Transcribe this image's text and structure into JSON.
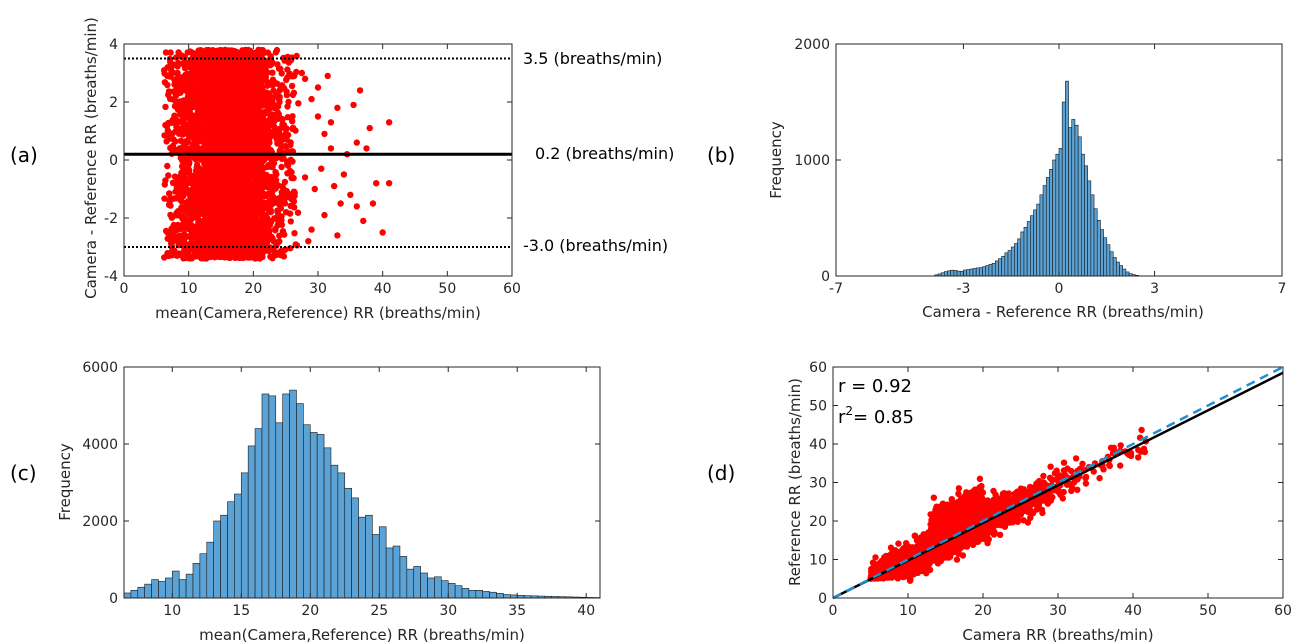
{
  "panel_labels": [
    "(a)",
    "(b)",
    "(c)",
    "(d)"
  ],
  "colors": {
    "points": "#ff0000",
    "bars": "#5ba3d6",
    "bar_edge": "#1a1a1a",
    "mean_line": "#000000",
    "identity_line": "#1f8fd1"
  },
  "chart_data": [
    {
      "panel": "(a)",
      "type": "scatter",
      "xlabel": "mean(Camera,Reference) RR (breaths/min)",
      "ylabel": "Camera - Reference RR (breaths/min)",
      "xlim": [
        0,
        60
      ],
      "ylim": [
        -4,
        4
      ],
      "xticks": [
        0,
        10,
        20,
        30,
        40,
        50,
        60
      ],
      "yticks": [
        -4,
        -2,
        0,
        2,
        4
      ],
      "reference_lines": [
        {
          "y": 3.5,
          "style": "dotted",
          "label": "3.5 (breaths/min)"
        },
        {
          "y": 0.2,
          "style": "solid",
          "label": "0.2 (breaths/min)"
        },
        {
          "y": -3.0,
          "style": "dotted",
          "label": "-3.0 (breaths/min)"
        }
      ],
      "dense_region": {
        "x": [
          6,
          27
        ],
        "y": [
          -3.4,
          3.8
        ]
      },
      "sparse_points": [
        [
          28,
          2.8
        ],
        [
          29,
          2.1
        ],
        [
          30,
          1.5
        ],
        [
          31,
          0.9
        ],
        [
          32,
          0.4
        ],
        [
          33,
          1.8
        ],
        [
          34,
          -0.5
        ],
        [
          35,
          -1.2
        ],
        [
          36,
          0.6
        ],
        [
          37,
          -2.1
        ],
        [
          38,
          1.1
        ],
        [
          39,
          -0.8
        ],
        [
          41,
          1.3
        ],
        [
          41,
          -0.8
        ],
        [
          40,
          -2.5
        ],
        [
          29,
          -2.4
        ],
        [
          31,
          -1.9
        ],
        [
          33,
          -2.6
        ],
        [
          30,
          2.5
        ],
        [
          32,
          1.3
        ],
        [
          36,
          -1.6
        ],
        [
          27.5,
          3.0
        ],
        [
          28.5,
          -2.8
        ],
        [
          30.5,
          -0.3
        ],
        [
          34.5,
          0.2
        ],
        [
          35.5,
          1.9
        ],
        [
          38.5,
          -1.5
        ],
        [
          37.5,
          0.4
        ],
        [
          31.5,
          2.9
        ],
        [
          29.5,
          -1.0
        ],
        [
          33.5,
          -1.5
        ],
        [
          36.5,
          2.4
        ],
        [
          28,
          -0.6
        ],
        [
          32.5,
          -0.9
        ]
      ],
      "grid": false
    },
    {
      "panel": "(b)",
      "type": "bar",
      "xlabel": "Camera - Reference RR (breaths/min)",
      "ylabel": "Frequency",
      "xlim": [
        -7,
        7
      ],
      "ylim": [
        0,
        2000
      ],
      "xticks": [
        -7,
        -3,
        0,
        3,
        7
      ],
      "yticks": [
        0,
        1000,
        2000
      ],
      "bin_start": -3.9,
      "bin_width": 0.1,
      "values": [
        10,
        18,
        28,
        38,
        45,
        50,
        48,
        42,
        40,
        52,
        55,
        60,
        65,
        70,
        72,
        80,
        90,
        100,
        110,
        130,
        150,
        170,
        200,
        220,
        250,
        280,
        320,
        380,
        420,
        470,
        520,
        570,
        620,
        700,
        780,
        850,
        920,
        1000,
        1050,
        1100,
        1500,
        1680,
        1280,
        1350,
        1300,
        1200,
        1050,
        950,
        820,
        700,
        580,
        480,
        400,
        330,
        270,
        210,
        160,
        120,
        90,
        60,
        35,
        20,
        12,
        6
      ],
      "grid": false
    },
    {
      "panel": "(c)",
      "type": "bar",
      "xlabel": "mean(Camera,Reference) RR (breaths/min)",
      "ylabel": "Frequency",
      "xlim": [
        6.5,
        41
      ],
      "ylim": [
        0,
        6000
      ],
      "xticks": [
        10,
        15,
        20,
        25,
        30,
        35,
        40
      ],
      "yticks": [
        0,
        2000,
        4000,
        6000
      ],
      "bin_start": 6.5,
      "bin_width": 0.5,
      "values": [
        130,
        200,
        280,
        360,
        480,
        430,
        520,
        700,
        480,
        620,
        900,
        1150,
        1450,
        2000,
        2150,
        2500,
        2700,
        3250,
        3950,
        4400,
        5300,
        5250,
        4550,
        5300,
        5400,
        5050,
        4500,
        4300,
        4250,
        3900,
        3450,
        3250,
        2850,
        2600,
        2100,
        2150,
        1650,
        1850,
        1300,
        1350,
        1080,
        750,
        820,
        650,
        520,
        550,
        450,
        380,
        320,
        250,
        200,
        200,
        170,
        150,
        120,
        90,
        80,
        70,
        60,
        55,
        50,
        45,
        40,
        35,
        30,
        25,
        20,
        15,
        12,
        10
      ],
      "grid": false
    },
    {
      "panel": "(d)",
      "type": "scatter",
      "xlabel": "Camera RR (breaths/min)",
      "ylabel": "Reference RR (breaths/min)",
      "xlim": [
        0,
        60
      ],
      "ylim": [
        0,
        60
      ],
      "xticks": [
        0,
        10,
        20,
        30,
        40,
        50,
        60
      ],
      "yticks": [
        0,
        10,
        20,
        30,
        40,
        50,
        60
      ],
      "annotations": [
        {
          "prefix": "r",
          "text": "r = 0.92"
        },
        {
          "prefix": "r",
          "sup": "2",
          "text": "= 0.85"
        }
      ],
      "fit_line": {
        "x": [
          0,
          60
        ],
        "y": [
          0,
          58.5
        ],
        "color": "#000000",
        "style": "solid"
      },
      "identity_line": {
        "x": [
          0,
          60
        ],
        "y": [
          0,
          60
        ],
        "color": "#1f8fd1",
        "style": "dashed"
      },
      "point_band": {
        "x": [
          5,
          42
        ],
        "spread": 4.5
      },
      "grid": false
    }
  ]
}
